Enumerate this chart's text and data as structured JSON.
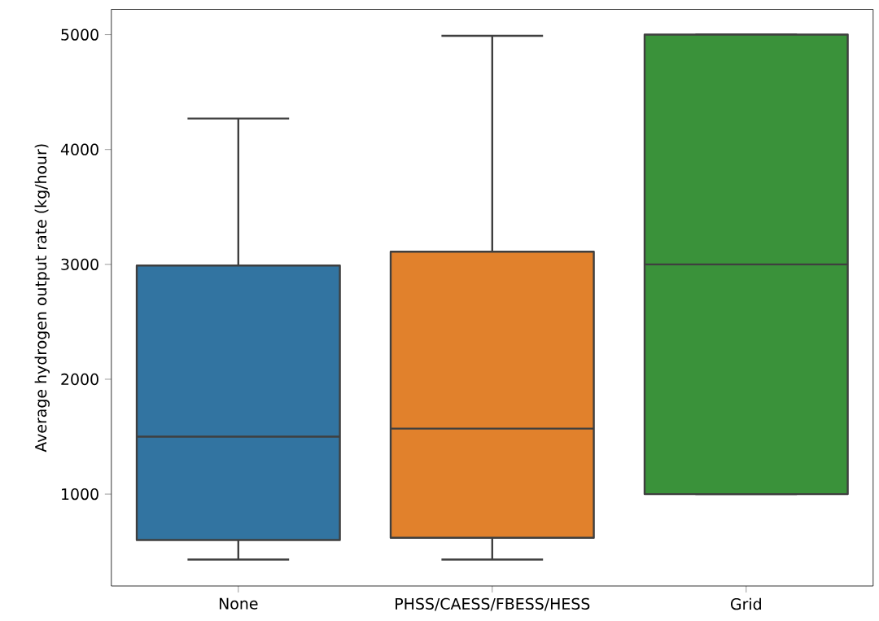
{
  "chart_data": {
    "type": "box",
    "ylabel": "Average hydrogen output rate (kg/hour)",
    "categories": [
      "None",
      "PHSS/CAESS/FBESS/HESS",
      "Grid"
    ],
    "boxes": [
      {
        "low": 430,
        "q1": 600,
        "median": 1500,
        "q3": 2990,
        "high": 4270
      },
      {
        "low": 430,
        "q1": 620,
        "median": 1570,
        "q3": 3110,
        "high": 4990
      },
      {
        "low": 1000,
        "q1": 1000,
        "median": 3000,
        "q3": 5000,
        "high": 5000
      }
    ],
    "colors": [
      "#3274a1",
      "#e1812c",
      "#3a923a"
    ],
    "ylim": [
      200,
      5220
    ],
    "yticks": [
      1000,
      2000,
      3000,
      4000,
      5000
    ],
    "grid": false
  }
}
